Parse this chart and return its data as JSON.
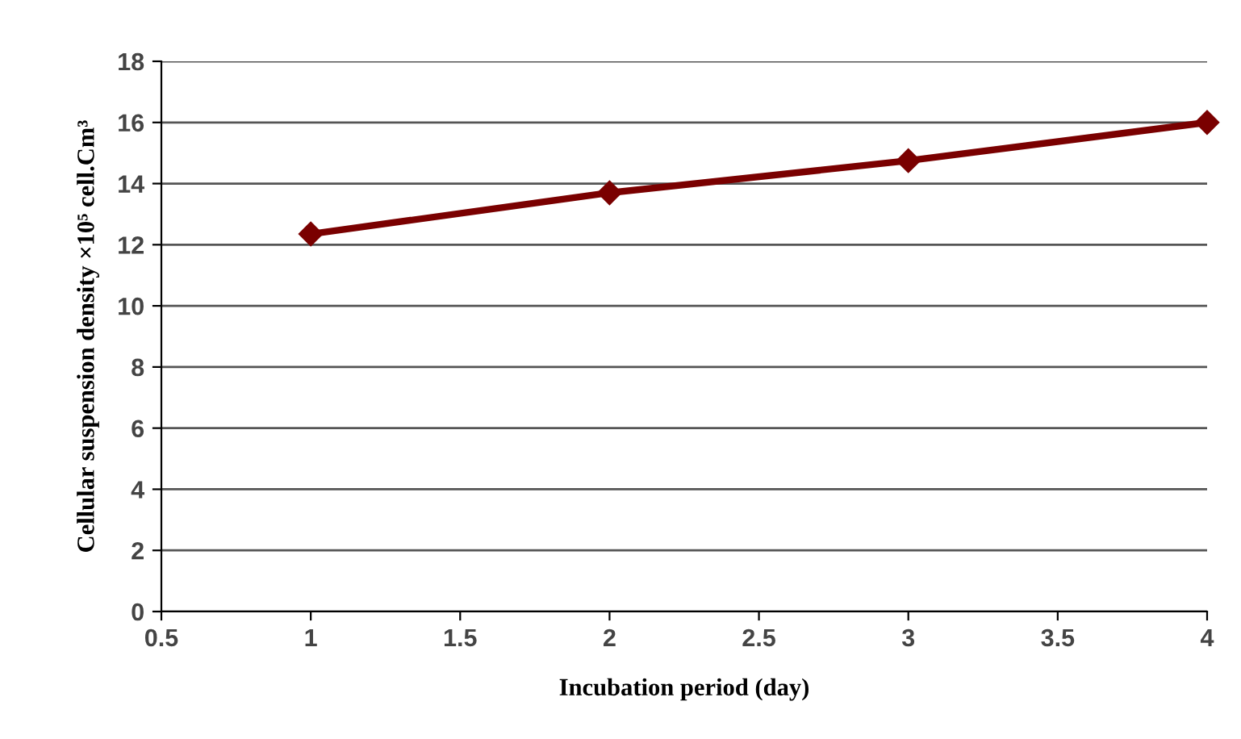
{
  "chart_data": {
    "type": "line",
    "xlabel": "Incubation period (day)",
    "ylabel": "Cellular suspension density ×10⁵ cell.Cm³",
    "x": [
      1,
      2,
      3,
      4
    ],
    "series": [
      {
        "color": "#7a0000",
        "values": [
          12.35,
          13.7,
          14.75,
          16.0
        ]
      }
    ],
    "xlim": [
      0.5,
      4
    ],
    "xticks": [
      0.5,
      1,
      1.5,
      2,
      2.5,
      3,
      3.5,
      4
    ],
    "ylim": [
      0,
      18
    ],
    "yticks": [
      0,
      2,
      4,
      6,
      8,
      10,
      12,
      14,
      16,
      18
    ],
    "grid": "y",
    "marker": "diamond",
    "line_style": "solid"
  }
}
